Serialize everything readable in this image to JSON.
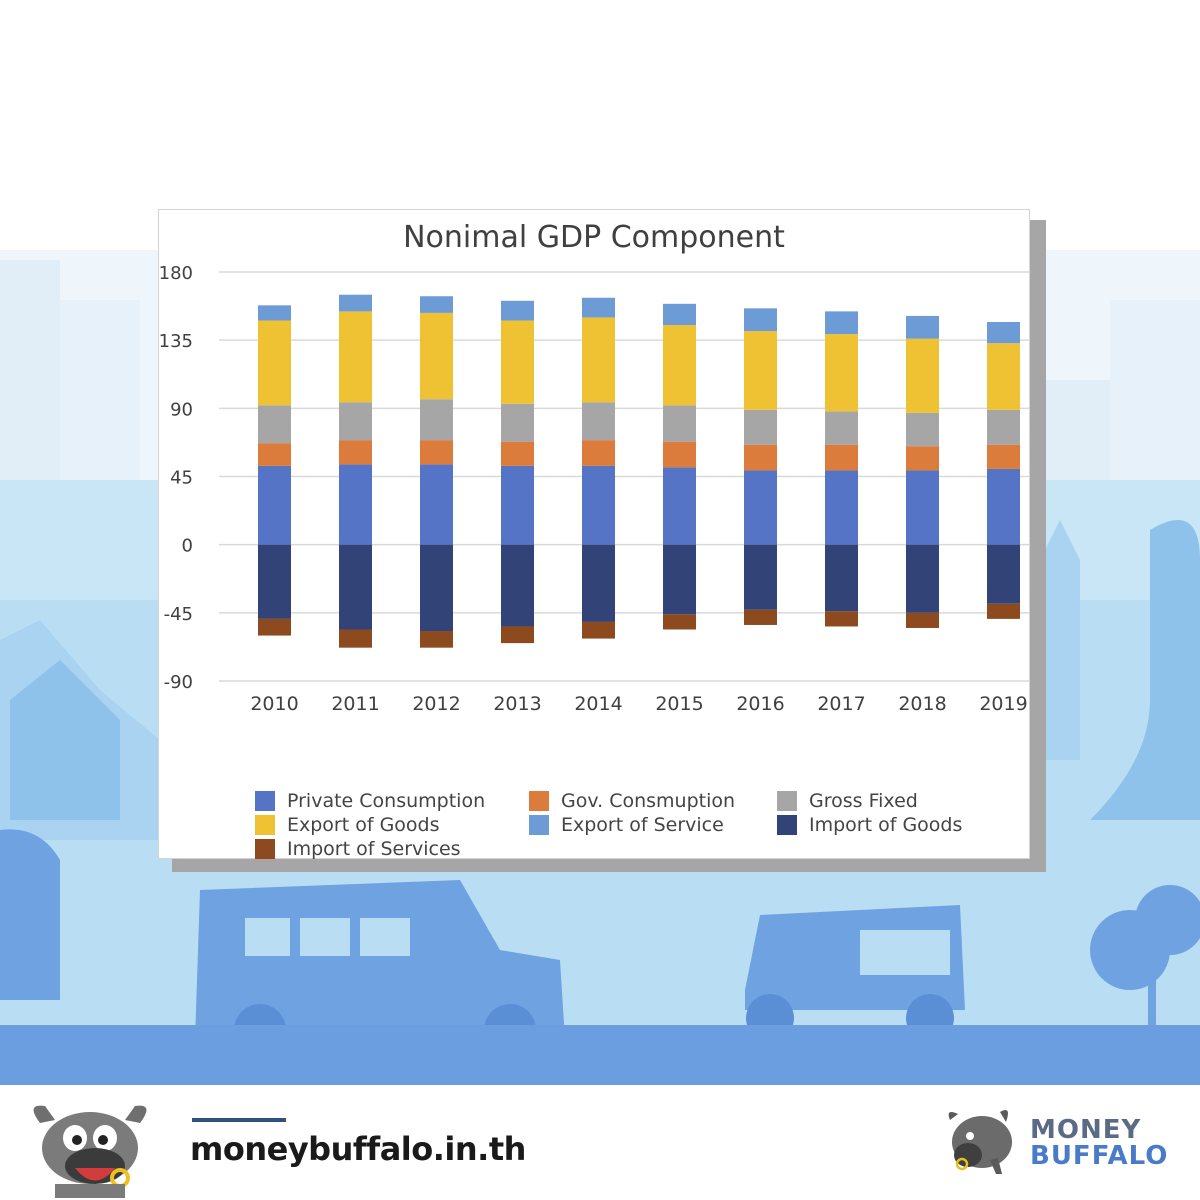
{
  "colors": {
    "private_consumption": "#5574c5",
    "gov_consumption": "#dc7c3c",
    "gross_fixed": "#a6a6a6",
    "export_goods": "#eec233",
    "export_service": "#6d9bd6",
    "import_goods": "#324477",
    "import_services": "#8d4a1e",
    "gridline": "#d9d9d9",
    "axis_text": "#404040",
    "bg_sky": "#c8e4f4",
    "bg_ground": "#6b9fe0"
  },
  "chart_data": {
    "type": "bar",
    "stacked": true,
    "title": "Nonimal GDP Component",
    "xlabel": "",
    "ylabel": "",
    "ylim": [
      -90,
      180
    ],
    "yticks": [
      "180",
      "135",
      "90",
      "45",
      "0",
      "-45",
      "-90"
    ],
    "grid": true,
    "legend_position": "bottom",
    "categories": [
      "2010",
      "2011",
      "2012",
      "2013",
      "2014",
      "2015",
      "2016",
      "2017",
      "2018",
      "2019"
    ],
    "series": [
      {
        "name": "Private Consumption",
        "values": [
          52,
          53,
          53,
          52,
          52,
          51,
          49,
          49,
          49,
          50
        ]
      },
      {
        "name": "Gov. Consmuption",
        "values": [
          15,
          16,
          16,
          16,
          17,
          17,
          17,
          17,
          16,
          16
        ]
      },
      {
        "name": "Gross Fixed",
        "values": [
          25,
          25,
          27,
          25,
          25,
          24,
          23,
          22,
          22,
          23
        ]
      },
      {
        "name": "Export of Goods",
        "values": [
          56,
          60,
          57,
          55,
          56,
          53,
          52,
          51,
          49,
          44
        ]
      },
      {
        "name": "Export of Service",
        "values": [
          10,
          11,
          11,
          13,
          13,
          14,
          15,
          15,
          15,
          14
        ]
      },
      {
        "name": "Import of Goods",
        "values": [
          -49,
          -56,
          -57,
          -54,
          -51,
          -46,
          -43,
          -44,
          -45,
          -39
        ]
      },
      {
        "name": "Import of Services",
        "values": [
          -11,
          -12,
          -11,
          -11,
          -11,
          -10,
          -10,
          -10,
          -10,
          -10
        ]
      }
    ]
  },
  "footer": {
    "url": "moneybuffalo.in.th",
    "brand_line1": "MONEY",
    "brand_line2": "BUFFALO"
  },
  "icons": {
    "mascot": "buffalo-mascot-icon",
    "brand_logo": "buffalo-logo-icon"
  }
}
